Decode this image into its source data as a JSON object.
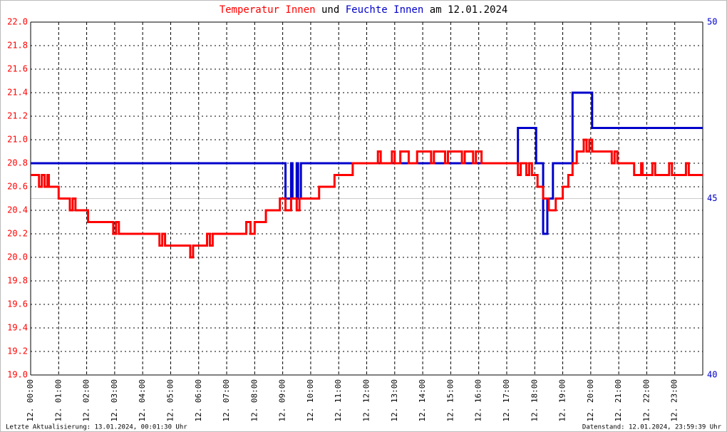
{
  "chart_data": {
    "type": "line",
    "drawstyle": "steps-post",
    "title_parts": [
      {
        "text": "Temperatur Innen",
        "color": "#ff0000"
      },
      {
        "text": "und",
        "color": "#000000"
      },
      {
        "text": "Feuchte Innen",
        "color": "#0000cc"
      },
      {
        "text": "am 12.01.2024",
        "color": "#000000"
      }
    ],
    "footer_left": "Letzte Aktualisierung: 13.01.2024, 00:01:30 Uhr",
    "footer_right": "Datenstand: 12.01.2024, 23:59:39 Uhr",
    "xlim": [
      0,
      24
    ],
    "xticks": [
      {
        "value": 0,
        "label": "12. 00:00"
      },
      {
        "value": 1,
        "label": "12. 01:00"
      },
      {
        "value": 2,
        "label": "12. 02:00"
      },
      {
        "value": 3,
        "label": "12. 03:00"
      },
      {
        "value": 4,
        "label": "12. 04:00"
      },
      {
        "value": 5,
        "label": "12. 05:00"
      },
      {
        "value": 6,
        "label": "12. 06:00"
      },
      {
        "value": 7,
        "label": "12. 07:00"
      },
      {
        "value": 8,
        "label": "12. 08:00"
      },
      {
        "value": 9,
        "label": "12. 09:00"
      },
      {
        "value": 10,
        "label": "12. 10:00"
      },
      {
        "value": 11,
        "label": "12. 11:00"
      },
      {
        "value": 12,
        "label": "12. 12:00"
      },
      {
        "value": 13,
        "label": "12. 13:00"
      },
      {
        "value": 14,
        "label": "12. 14:00"
      },
      {
        "value": 15,
        "label": "12. 15:00"
      },
      {
        "value": 16,
        "label": "12. 16:00"
      },
      {
        "value": 17,
        "label": "12. 17:00"
      },
      {
        "value": 18,
        "label": "12. 18:00"
      },
      {
        "value": 19,
        "label": "12. 19:00"
      },
      {
        "value": 20,
        "label": "12. 20:00"
      },
      {
        "value": 21,
        "label": "12. 21:00"
      },
      {
        "value": 22,
        "label": "12. 22:00"
      },
      {
        "value": 23,
        "label": "12. 23:00"
      }
    ],
    "ylim": [
      19.0,
      22.0
    ],
    "yticks": [
      {
        "value": 19.0,
        "label": "19.0"
      },
      {
        "value": 19.2,
        "label": "19.2"
      },
      {
        "value": 19.4,
        "label": "19.4"
      },
      {
        "value": 19.6,
        "label": "19.6"
      },
      {
        "value": 19.8,
        "label": "19.8"
      },
      {
        "value": 20.0,
        "label": "20.0"
      },
      {
        "value": 20.2,
        "label": "20.2"
      },
      {
        "value": 20.4,
        "label": "20.4"
      },
      {
        "value": 20.6,
        "label": "20.6"
      },
      {
        "value": 20.8,
        "label": "20.8"
      },
      {
        "value": 21.0,
        "label": "21.0"
      },
      {
        "value": 21.2,
        "label": "21.2"
      },
      {
        "value": 21.4,
        "label": "21.4"
      },
      {
        "value": 21.6,
        "label": "21.6"
      },
      {
        "value": 21.8,
        "label": "21.8"
      },
      {
        "value": 22.0,
        "label": "22.0"
      }
    ],
    "y2lim": [
      40,
      50
    ],
    "y2ticks": [
      40,
      45,
      50
    ],
    "grid": true,
    "series": [
      {
        "name": "Temperatur Innen",
        "color": "#ff0000",
        "x": [
          0,
          0.3,
          0.4,
          0.5,
          0.6,
          0.65,
          1.0,
          1.4,
          1.5,
          1.6,
          2.05,
          2.95,
          3.05,
          3.15,
          4.6,
          4.7,
          4.8,
          5.7,
          5.8,
          6.3,
          6.4,
          6.5,
          7.7,
          7.85,
          8.0,
          8.4,
          8.9,
          9.1,
          9.3,
          9.5,
          9.6,
          10.3,
          10.85,
          11.5,
          12.4,
          12.5,
          12.9,
          13.0,
          13.2,
          13.5,
          13.8,
          14.3,
          14.4,
          14.8,
          14.9,
          15.4,
          15.5,
          15.8,
          15.9,
          16.1,
          17.4,
          17.5,
          17.7,
          17.8,
          17.9,
          18.1,
          18.3,
          18.5,
          18.75,
          19.0,
          19.2,
          19.35,
          19.5,
          19.75,
          19.85,
          19.95,
          20.05,
          20.75,
          20.85,
          20.95,
          21.55,
          21.8,
          21.85,
          22.2,
          22.3,
          22.8,
          22.9,
          23.4,
          23.5,
          24
        ],
        "values": [
          20.7,
          20.6,
          20.7,
          20.6,
          20.7,
          20.6,
          20.5,
          20.4,
          20.5,
          20.4,
          20.3,
          20.2,
          20.3,
          20.2,
          20.1,
          20.2,
          20.1,
          20.0,
          20.1,
          20.2,
          20.1,
          20.2,
          20.3,
          20.2,
          20.3,
          20.4,
          20.5,
          20.4,
          20.5,
          20.4,
          20.5,
          20.6,
          20.7,
          20.8,
          20.9,
          20.8,
          20.9,
          20.8,
          20.9,
          20.8,
          20.9,
          20.8,
          20.9,
          20.8,
          20.9,
          20.8,
          20.9,
          20.8,
          20.9,
          20.8,
          20.7,
          20.8,
          20.7,
          20.8,
          20.7,
          20.6,
          20.5,
          20.4,
          20.5,
          20.6,
          20.7,
          20.8,
          20.9,
          21.0,
          20.9,
          21.0,
          20.9,
          20.8,
          20.9,
          20.8,
          20.7,
          20.8,
          20.7,
          20.8,
          20.7,
          20.8,
          20.7,
          20.8,
          20.7,
          20.7
        ]
      },
      {
        "name": "Feuchte Innen",
        "color": "#0000cc",
        "axis": "y2",
        "x": [
          0,
          9.1,
          9.3,
          9.35,
          9.5,
          9.55,
          9.65,
          17.4,
          18.05,
          18.3,
          18.45,
          18.65,
          19.35,
          20.05,
          24
        ],
        "values": [
          46,
          45,
          46,
          45,
          46,
          45,
          46,
          47,
          46,
          44,
          45,
          46,
          48,
          47,
          47
        ]
      }
    ]
  }
}
